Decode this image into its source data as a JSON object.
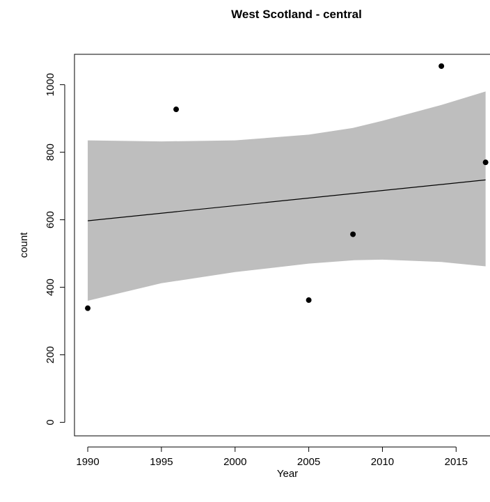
{
  "chart_data": {
    "type": "scatter",
    "title": "West Scotland - central",
    "xlabel": "Year",
    "ylabel": "count",
    "xlim": [
      1989.1,
      2017.3
    ],
    "ylim": [
      -40,
      1090
    ],
    "x_ticks": [
      "1990",
      "1995",
      "2000",
      "2005",
      "2010",
      "2015"
    ],
    "y_ticks": [
      "0",
      "200",
      "400",
      "600",
      "800",
      "1000"
    ],
    "grid": false,
    "legend": "none",
    "points": [
      {
        "x": 1990,
        "y": 338
      },
      {
        "x": 1996,
        "y": 927
      },
      {
        "x": 2005,
        "y": 362
      },
      {
        "x": 2008,
        "y": 557
      },
      {
        "x": 2014,
        "y": 1055
      },
      {
        "x": 2017,
        "y": 770
      }
    ],
    "fit_line": {
      "x": [
        1990,
        2017
      ],
      "y": [
        597,
        718
      ]
    },
    "confidence_band": {
      "x": [
        1990,
        1995,
        2000,
        2005,
        2008,
        2010,
        2014,
        2017
      ],
      "upper": [
        835,
        832,
        835,
        852,
        872,
        893,
        940,
        980
      ],
      "lower": [
        360,
        412,
        445,
        470,
        480,
        482,
        475,
        462
      ]
    },
    "colors": {
      "band": "#bebebe",
      "line": "#000000",
      "points": "#000000"
    }
  }
}
